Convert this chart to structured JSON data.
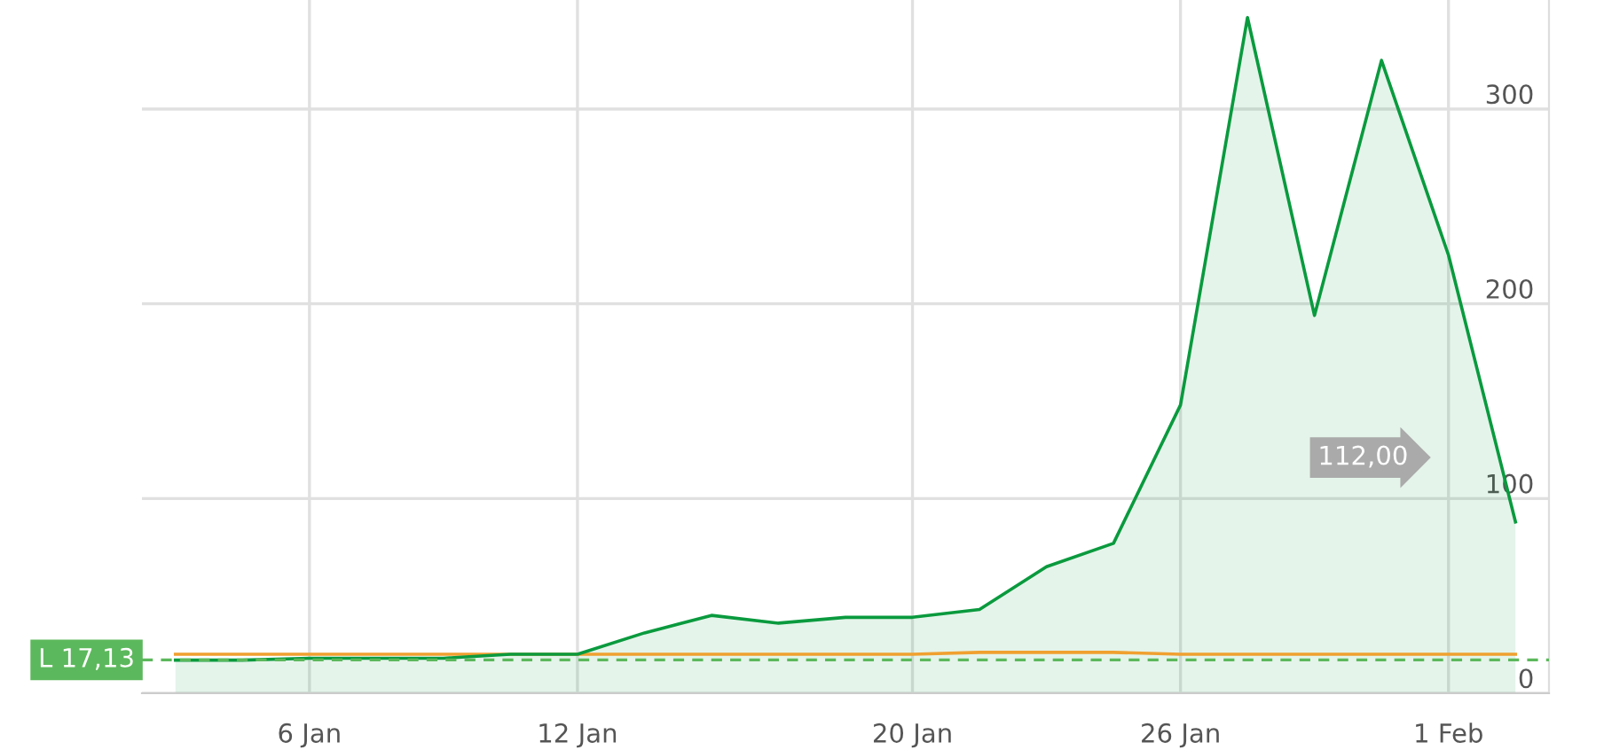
{
  "chart_data": {
    "type": "area",
    "categories": [
      null,
      null,
      "6 Jan",
      null,
      null,
      null,
      "12 Jan",
      null,
      null,
      null,
      null,
      "20 Jan",
      null,
      null,
      null,
      "26 Jan",
      null,
      null,
      null,
      "1 Feb",
      null
    ],
    "series": [
      {
        "color": "#0a9a3e",
        "values": [
          17,
          17,
          18,
          18,
          18,
          20,
          20,
          31,
          40,
          36,
          39,
          39,
          43,
          65,
          77,
          148,
          347,
          194,
          325,
          225,
          88
        ]
      },
      {
        "type": "line",
        "color": "#f0a030",
        "values": [
          20,
          20,
          20,
          20,
          20,
          20,
          20,
          20,
          20,
          20,
          20,
          20,
          21,
          21,
          21,
          20,
          20,
          20,
          20,
          20,
          20
        ]
      }
    ],
    "ylim": [
      0,
      356
    ],
    "yticks": [
      0,
      100,
      200,
      300
    ],
    "grid": true,
    "ref_lines": [
      {
        "axis": "y",
        "value": 17.13,
        "label": "L 17,13",
        "color": "#5cb85c",
        "line_style": "dashed"
      }
    ],
    "annotations": [
      "112,00"
    ]
  }
}
